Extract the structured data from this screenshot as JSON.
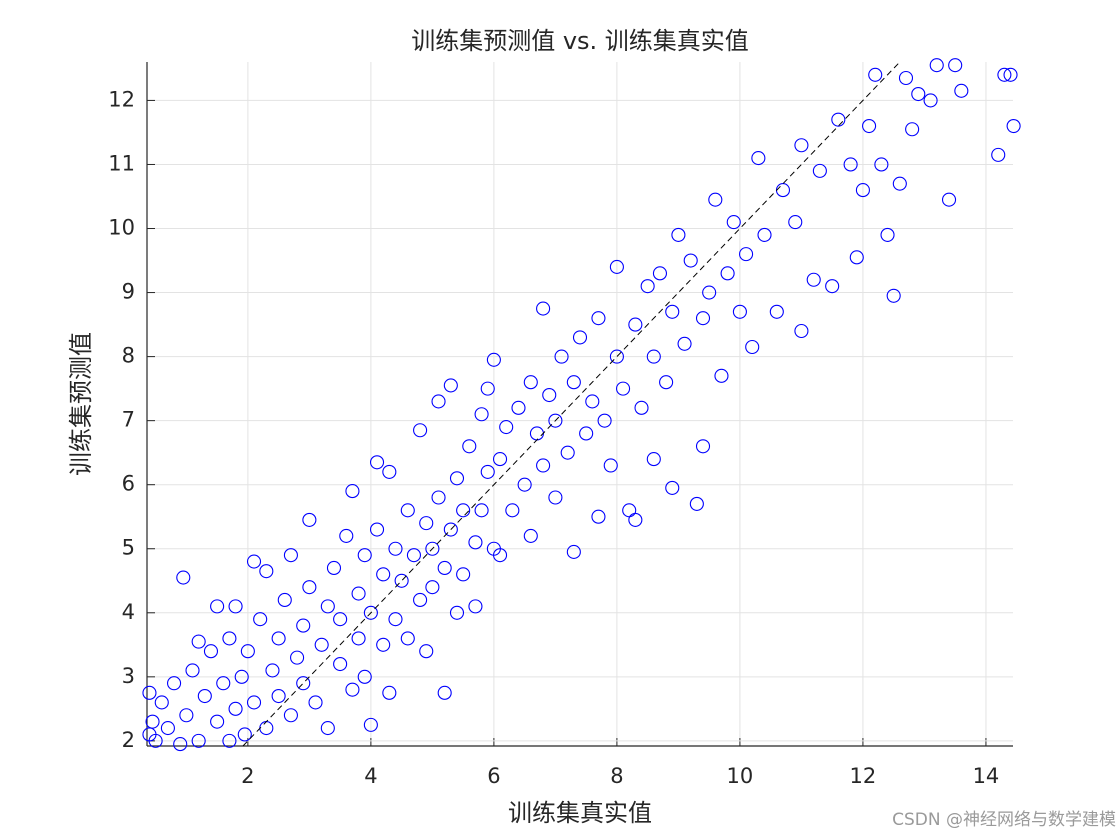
{
  "chart_data": {
    "type": "scatter",
    "title": "训练集预测值 vs. 训练集真实值",
    "xlabel": "训练集真实值",
    "ylabel": "训练集预测值",
    "watermark": "CSDN @神经网络与数学建模",
    "color": "#0000ff",
    "grid": true,
    "identity_line": true,
    "xlim": [
      0.36,
      14.44
    ],
    "ylim": [
      1.92,
      12.6
    ],
    "xticks": [
      2,
      4,
      6,
      8,
      10,
      12,
      14
    ],
    "yticks": [
      2,
      3,
      4,
      5,
      6,
      7,
      8,
      9,
      10,
      11,
      12
    ],
    "x": [
      0.4,
      0.4,
      0.45,
      0.5,
      0.6,
      0.7,
      0.8,
      0.9,
      0.95,
      1.0,
      1.1,
      1.2,
      1.2,
      1.3,
      1.4,
      1.5,
      1.5,
      1.6,
      1.7,
      1.7,
      1.8,
      1.8,
      1.9,
      1.95,
      2.0,
      2.1,
      2.1,
      2.2,
      2.3,
      2.3,
      2.4,
      2.5,
      2.5,
      2.6,
      2.7,
      2.7,
      2.8,
      2.9,
      2.9,
      3.0,
      3.0,
      3.1,
      3.2,
      3.3,
      3.3,
      3.4,
      3.5,
      3.5,
      3.6,
      3.7,
      3.7,
      3.8,
      3.8,
      3.9,
      3.9,
      4.0,
      4.0,
      4.1,
      4.1,
      4.2,
      4.2,
      4.3,
      4.3,
      4.4,
      4.4,
      4.5,
      4.6,
      4.6,
      4.7,
      4.8,
      4.8,
      4.9,
      4.9,
      5.0,
      5.0,
      5.1,
      5.1,
      5.2,
      5.2,
      5.3,
      5.3,
      5.4,
      5.4,
      5.5,
      5.5,
      5.6,
      5.7,
      5.7,
      5.8,
      5.8,
      5.9,
      5.9,
      6.0,
      6.0,
      6.1,
      6.1,
      6.2,
      6.3,
      6.4,
      6.5,
      6.6,
      6.6,
      6.7,
      6.8,
      6.8,
      6.9,
      7.0,
      7.0,
      7.1,
      7.2,
      7.3,
      7.3,
      7.4,
      7.5,
      7.6,
      7.7,
      7.7,
      7.8,
      7.9,
      8.0,
      8.0,
      8.1,
      8.2,
      8.3,
      8.3,
      8.4,
      8.5,
      8.6,
      8.6,
      8.7,
      8.8,
      8.9,
      8.9,
      9.0,
      9.1,
      9.2,
      9.3,
      9.4,
      9.4,
      9.5,
      9.6,
      9.7,
      9.8,
      9.9,
      10.0,
      10.1,
      10.2,
      10.3,
      10.4,
      10.6,
      10.7,
      10.9,
      11.0,
      11.0,
      11.2,
      11.3,
      11.5,
      11.6,
      11.8,
      11.9,
      12.0,
      12.1,
      12.2,
      12.3,
      12.4,
      12.5,
      12.6,
      12.7,
      12.8,
      12.9,
      13.1,
      13.2,
      13.4,
      13.5,
      13.6,
      14.2,
      14.3,
      14.45,
      14.4
    ],
    "y": [
      2.75,
      2.1,
      2.3,
      2.0,
      2.6,
      2.2,
      2.9,
      1.95,
      4.55,
      2.4,
      3.1,
      2.0,
      3.55,
      2.7,
      3.4,
      2.3,
      4.1,
      2.9,
      2.0,
      3.6,
      2.5,
      4.1,
      3.0,
      2.1,
      3.4,
      4.8,
      2.6,
      3.9,
      2.2,
      4.65,
      3.1,
      3.6,
      2.7,
      4.2,
      2.4,
      4.9,
      3.3,
      3.8,
      2.9,
      4.4,
      5.45,
      2.6,
      3.5,
      4.1,
      2.2,
      4.7,
      3.2,
      3.9,
      5.2,
      5.9,
      2.8,
      4.3,
      3.6,
      4.9,
      3.0,
      4.0,
      2.25,
      5.3,
      6.35,
      3.5,
      4.6,
      6.2,
      2.75,
      5.0,
      3.9,
      4.5,
      5.6,
      3.6,
      4.9,
      6.85,
      4.2,
      5.4,
      3.4,
      5.0,
      4.4,
      5.8,
      7.3,
      4.7,
      2.75,
      5.3,
      7.55,
      6.1,
      4.0,
      5.6,
      4.6,
      6.6,
      5.1,
      4.1,
      7.1,
      5.6,
      6.2,
      7.5,
      5.0,
      7.95,
      6.4,
      4.9,
      6.9,
      5.6,
      7.2,
      6.0,
      7.6,
      5.2,
      6.8,
      8.75,
      6.3,
      7.4,
      5.8,
      7.0,
      8.0,
      6.5,
      4.95,
      7.6,
      8.3,
      6.8,
      7.3,
      5.5,
      8.6,
      7.0,
      6.3,
      8.0,
      9.4,
      7.5,
      5.6,
      8.5,
      5.45,
      7.2,
      9.1,
      8.0,
      6.4,
      9.3,
      7.6,
      5.95,
      8.7,
      9.9,
      8.2,
      9.5,
      5.7,
      8.6,
      6.6,
      9.0,
      10.45,
      7.7,
      9.3,
      10.1,
      8.7,
      9.6,
      8.15,
      11.1,
      9.9,
      8.7,
      10.6,
      10.1,
      8.4,
      11.3,
      9.2,
      10.9,
      9.1,
      11.7,
      11.0,
      9.55,
      10.6,
      11.6,
      12.4,
      11.0,
      9.9,
      8.95,
      10.7,
      12.35,
      11.55,
      12.1,
      12.0,
      12.55,
      10.45,
      12.55,
      12.15,
      11.15,
      12.4,
      11.6,
      12.4
    ]
  }
}
